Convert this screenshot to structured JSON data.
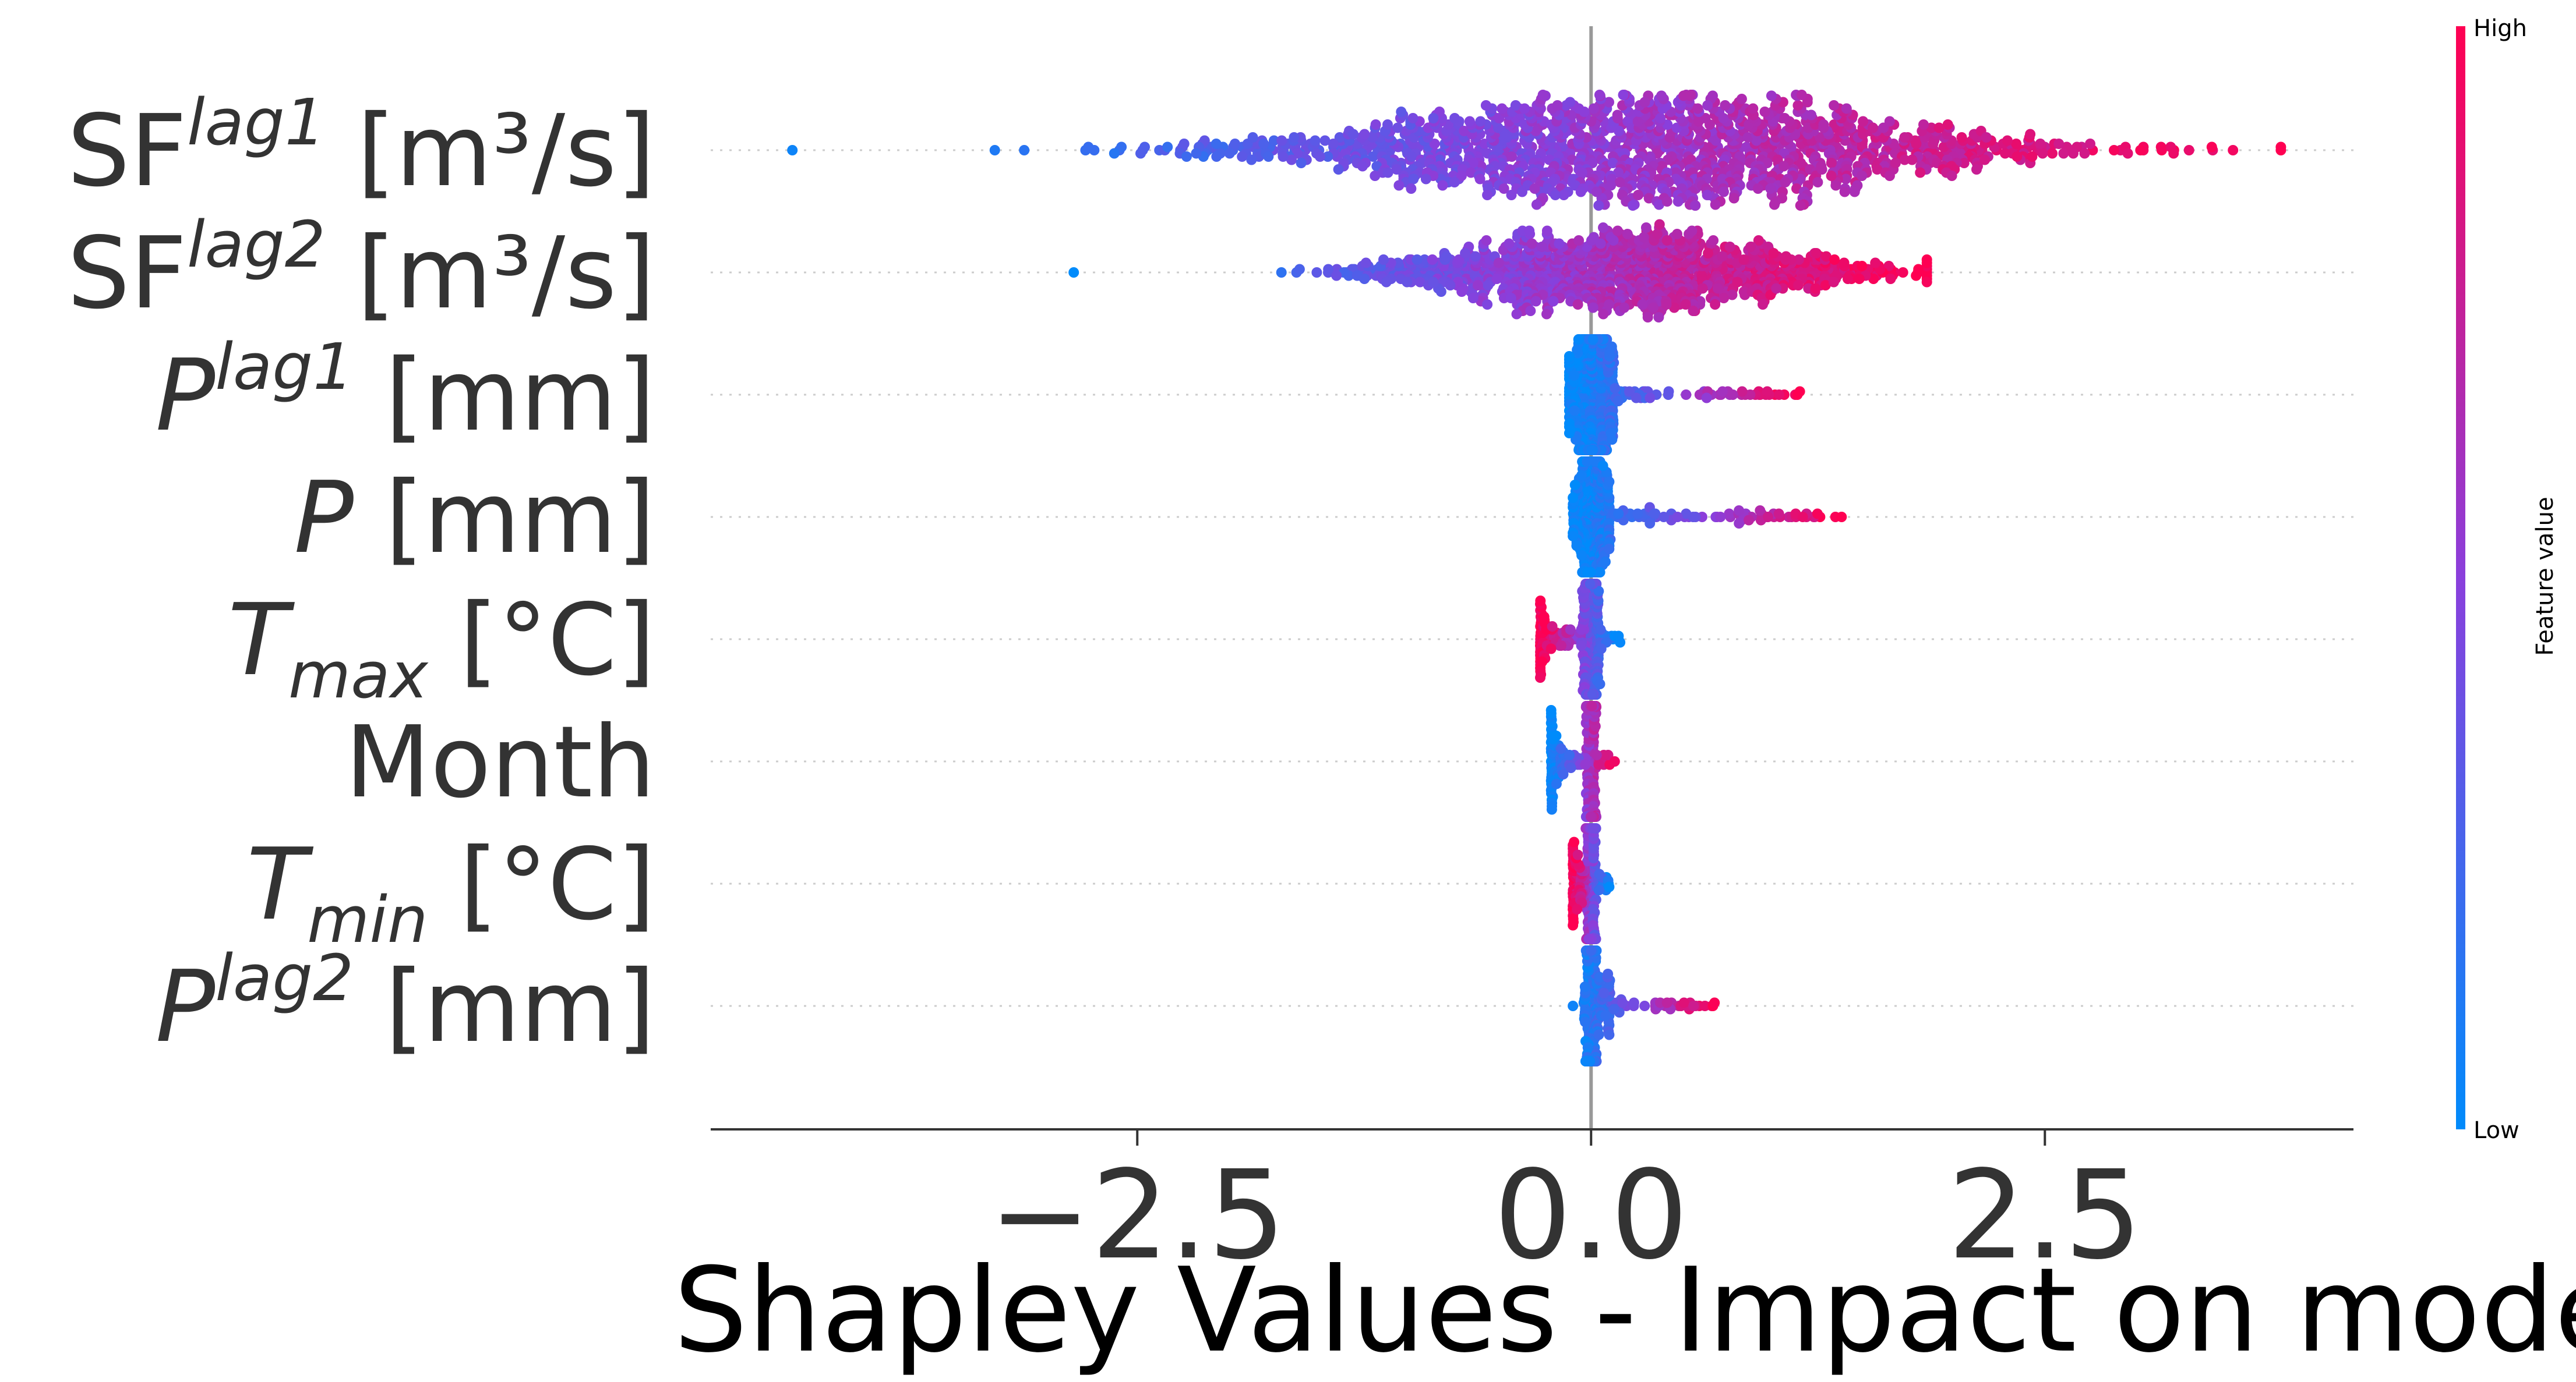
{
  "chart_data": {
    "type": "scatter",
    "subtype": "shap-beeswarm",
    "title": "",
    "xlabel": "Shapley Values - Impact on model",
    "ylabel": "",
    "xlim": [
      -4.85,
      4.2
    ],
    "xticks": [
      -2.5,
      0.0,
      2.5
    ],
    "xtick_labels": [
      "−2.5",
      "0.0",
      "2.5"
    ],
    "zero_line": 0.0,
    "grid": false,
    "colorbar": {
      "label": "Feature value",
      "high_label": "High",
      "low_label": "Low",
      "low_color": "#008bfb",
      "high_color": "#ff0052"
    },
    "features": [
      {
        "base": "SF",
        "sup": "lag1",
        "unit": "[m³/s]",
        "min": -4.4,
        "max": 3.8,
        "neg_low": true,
        "spread": 1.6,
        "center": 0.3,
        "density": 1.0
      },
      {
        "base": "SF",
        "sup": "lag2",
        "unit": "[m³/s]",
        "min": -2.85,
        "max": 1.85,
        "neg_low": true,
        "spread": 1.0,
        "center": 0.2,
        "density": 0.8
      },
      {
        "base": "P",
        "sup": "lag1",
        "unit": "[mm]",
        "min": -0.12,
        "max": 1.15,
        "neg_low": true,
        "spread": 0.25,
        "center": 0.0,
        "density": 0.45
      },
      {
        "base": "P",
        "sup": "",
        "unit": "[mm]",
        "min": -0.1,
        "max": 1.38,
        "neg_low": true,
        "spread": 0.18,
        "center": 0.0,
        "density": 0.4
      },
      {
        "base": "T",
        "sub": "max",
        "unit": "[°C]",
        "min": -0.28,
        "max": 0.16,
        "neg_low": false,
        "spread": 0.08,
        "center": 0.0,
        "density": 0.45
      },
      {
        "base": "Month",
        "unit": "",
        "min": -0.22,
        "max": 0.13,
        "neg_low": true,
        "spread": 0.05,
        "center": 0.0,
        "density": 0.4
      },
      {
        "base": "T",
        "sub": "min",
        "unit": "[°C]",
        "min": -0.1,
        "max": 0.1,
        "neg_low": false,
        "spread": 0.04,
        "center": 0.0,
        "density": 0.4
      },
      {
        "base": "P",
        "sup": "lag2",
        "unit": "[mm]",
        "min": -0.1,
        "max": 0.68,
        "neg_low": true,
        "spread": 0.06,
        "center": 0.0,
        "density": 0.4
      }
    ]
  }
}
